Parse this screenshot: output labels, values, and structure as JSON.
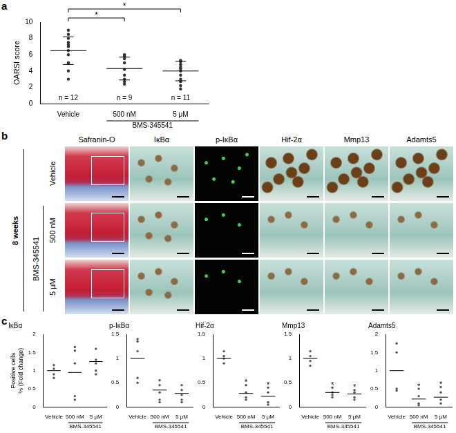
{
  "panel_labels": [
    "a",
    "b",
    "c"
  ],
  "chart_data": [
    {
      "type": "scatter",
      "y_label": "OARSI score",
      "categories": [
        "Vehicle",
        "500 nM",
        "5 μM"
      ],
      "group_label": {
        "text": "BMS-345541",
        "categories": [
          "500 nM",
          "5 μM"
        ]
      },
      "values": [
        [
          9.0,
          8.5,
          8.0,
          7.5,
          7.2,
          7.0,
          6.5,
          6.0,
          5.0,
          5.0,
          4.0,
          3.0
        ],
        [
          6.0,
          5.8,
          5.5,
          5.0,
          4.2,
          3.5,
          3.0,
          2.7,
          2.4
        ],
        [
          5.3,
          5.1,
          4.8,
          4.5,
          4.3,
          4.0,
          3.5,
          3.0,
          2.7,
          2.2,
          1.8
        ]
      ],
      "means": [
        6.5,
        4.3,
        4.0
      ],
      "sd": [
        1.7,
        1.4,
        1.2
      ],
      "n_labels": [
        "n = 12",
        "n = 9",
        "n = 11"
      ],
      "brackets": [
        {
          "from": "Vehicle",
          "to": "500 nM",
          "text": "*"
        },
        {
          "from": "Vehicle",
          "to": "5 μM",
          "text": "*"
        }
      ],
      "ylim": [
        0,
        10
      ],
      "yticks": [
        0,
        2,
        4,
        6,
        8,
        10
      ],
      "grid": false,
      "color": "#333333",
      "marker": "circle"
    },
    {
      "type": "scatter",
      "title": "IκBα",
      "y_label": [
        "Positive cells",
        "% (Fold change)"
      ],
      "categories": [
        "Vehicle",
        "500 nM",
        "5 μM"
      ],
      "group_label": {
        "text": "BMS-345541",
        "categories": [
          "500 nM",
          "5 μM"
        ]
      },
      "values": [
        [
          1.15,
          1.05,
          0.9,
          0.8
        ],
        [
          1.65,
          1.55,
          1.2,
          0.3,
          0.2
        ],
        [
          1.6,
          1.3,
          1.2,
          1.0,
          0.9
        ]
      ],
      "means": [
        1.0,
        0.95,
        1.25
      ],
      "ylim": [
        0,
        2
      ],
      "yticks": [
        0,
        0.5,
        1,
        1.5,
        2
      ],
      "grid": false,
      "color": "#555555",
      "marker": "circle"
    },
    {
      "type": "scatter",
      "title": "p-IκBα",
      "categories": [
        "Vehicle",
        "500 nM",
        "5 μM"
      ],
      "group_label": {
        "text": "BMS-345541",
        "categories": [
          "500 nM",
          "5 μM"
        ]
      },
      "values": [
        [
          1.4,
          1.35,
          1.15,
          0.6,
          0.5
        ],
        [
          0.55,
          0.45,
          0.3,
          0.15,
          0.1
        ],
        [
          0.45,
          0.35,
          0.25,
          0.15,
          0.1
        ]
      ],
      "means": [
        1.0,
        0.35,
        0.28
      ],
      "ylim": [
        0,
        1.5
      ],
      "yticks": [
        0,
        0.5,
        1,
        1.5
      ],
      "grid": false,
      "color": "#555555",
      "marker": "circle"
    },
    {
      "type": "scatter",
      "title": "Hif-2α",
      "categories": [
        "Vehicle",
        "500 nM",
        "5 μM"
      ],
      "group_label": {
        "text": "BMS-345541",
        "categories": [
          "500 nM",
          "5 μM"
        ]
      },
      "values": [
        [
          1.15,
          1.05,
          1.0,
          0.9
        ],
        [
          0.45,
          0.3,
          0.2,
          0.15
        ],
        [
          0.4,
          0.3,
          0.1,
          0.05
        ]
      ],
      "means": [
        1.0,
        0.28,
        0.22
      ],
      "stars": [
        {
          "category": "500 nM",
          "text": "*"
        },
        {
          "category": "5 μM",
          "text": "*"
        }
      ],
      "ylim": [
        0,
        1.5
      ],
      "yticks": [
        0,
        0.5,
        1,
        1.5
      ],
      "grid": false,
      "color": "#555555",
      "marker": "circle"
    },
    {
      "type": "scatter",
      "title": "Mmp13",
      "categories": [
        "Vehicle",
        "500 nM",
        "5 μM"
      ],
      "group_label": {
        "text": "BMS-345541",
        "categories": [
          "500 nM",
          "5 μM"
        ]
      },
      "values": [
        [
          1.15,
          1.05,
          0.95,
          0.85
        ],
        [
          0.4,
          0.3,
          0.25,
          0.2
        ],
        [
          0.35,
          0.3,
          0.2,
          0.15
        ]
      ],
      "means": [
        1.0,
        0.3,
        0.27
      ],
      "stars": [
        {
          "category": "500 nM",
          "text": "*"
        },
        {
          "category": "5 μM",
          "text": "*"
        }
      ],
      "ylim": [
        0,
        1.5
      ],
      "yticks": [
        0,
        0.5,
        1,
        1.5
      ],
      "grid": false,
      "color": "#555555",
      "marker": "circle"
    },
    {
      "type": "scatter",
      "title": "Adamts5",
      "categories": [
        "Vehicle",
        "500 nM",
        "5 μM"
      ],
      "group_label": {
        "text": "BMS-345541",
        "categories": [
          "500 nM",
          "5 μM"
        ]
      },
      "values": [
        [
          1.75,
          1.5,
          0.5,
          0.45
        ],
        [
          0.5,
          0.3,
          0.1,
          0.05
        ],
        [
          0.55,
          0.4,
          0.2,
          0.1
        ]
      ],
      "means": [
        1.0,
        0.22,
        0.27
      ],
      "stars": [
        {
          "category": "500 nM",
          "text": "*"
        },
        {
          "category": "5 μM",
          "text": "*"
        }
      ],
      "ylim": [
        0,
        2
      ],
      "yticks": [
        0,
        0.5,
        1,
        1.5,
        2
      ],
      "grid": false,
      "color": "#555555",
      "marker": "circle"
    }
  ],
  "histology": {
    "time": "8 weeks",
    "group_label": "BMS-345541",
    "rows": [
      "Vehicle",
      "500 nM",
      "5 μM"
    ],
    "columns": [
      "Safranin-O",
      "IκBα",
      "p-IκBα",
      "Hif-2α",
      "Mmp13",
      "Adamts5"
    ]
  }
}
